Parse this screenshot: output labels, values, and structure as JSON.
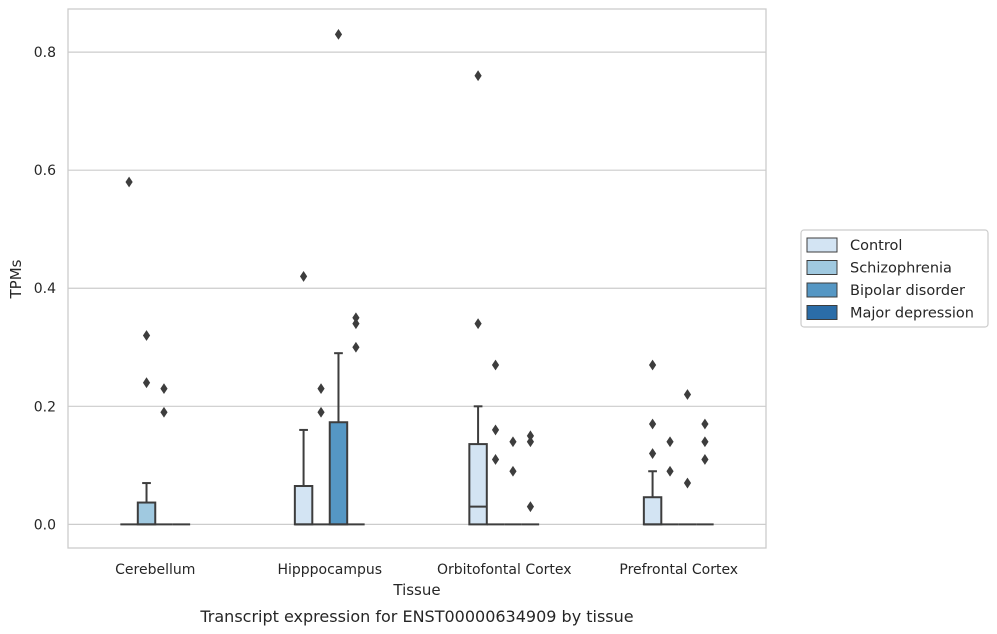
{
  "chart_data": {
    "type": "box",
    "title": "Transcript expression for ENST00000634909 by tissue",
    "xlabel": "Tissue",
    "ylabel": "TPMs",
    "ylim": [
      -0.04,
      0.873
    ],
    "yticks": [
      "0.0",
      "0.2",
      "0.4",
      "0.6",
      "0.8"
    ],
    "categories": [
      "Cerebellum",
      "Hipppocampus",
      "Orbitofontal Cortex",
      "Prefrontal Cortex"
    ],
    "grid": true,
    "legend_position": "right",
    "series": [
      {
        "name": "Control",
        "color": "#d3e4f3",
        "boxes": [
          {
            "q1": 0,
            "median": 0,
            "q3": 0,
            "whisker_low": 0,
            "whisker_high": 0,
            "outliers": [
              0.58
            ]
          },
          {
            "q1": 0,
            "median": 0,
            "q3": 0.065,
            "whisker_low": 0,
            "whisker_high": 0.16,
            "outliers": [
              0.42
            ]
          },
          {
            "q1": 0,
            "median": 0.03,
            "q3": 0.136,
            "whisker_low": 0,
            "whisker_high": 0.2,
            "outliers": [
              0.34,
              0.76
            ]
          },
          {
            "q1": 0,
            "median": 0,
            "q3": 0.046,
            "whisker_low": 0,
            "whisker_high": 0.09,
            "outliers": [
              0.12,
              0.17,
              0.27
            ]
          }
        ]
      },
      {
        "name": "Schizophrenia",
        "color": "#a0c9e0",
        "boxes": [
          {
            "q1": 0,
            "median": 0,
            "q3": 0.037,
            "whisker_low": 0,
            "whisker_high": 0.07,
            "outliers": [
              0.24,
              0.32
            ]
          },
          {
            "q1": 0,
            "median": 0,
            "q3": 0,
            "whisker_low": 0,
            "whisker_high": 0,
            "outliers": [
              0.19,
              0.23
            ]
          },
          {
            "q1": 0,
            "median": 0,
            "q3": 0,
            "whisker_low": 0,
            "whisker_high": 0,
            "outliers": [
              0.11,
              0.16,
              0.27
            ]
          },
          {
            "q1": 0,
            "median": 0,
            "q3": 0,
            "whisker_low": 0,
            "whisker_high": 0,
            "outliers": [
              0.09,
              0.14
            ]
          }
        ]
      },
      {
        "name": "Bipolar disorder",
        "color": "#5597c4",
        "boxes": [
          {
            "q1": 0,
            "median": 0,
            "q3": 0,
            "whisker_low": 0,
            "whisker_high": 0,
            "outliers": [
              0.19,
              0.23
            ]
          },
          {
            "q1": 0,
            "median": 0,
            "q3": 0.173,
            "whisker_low": 0,
            "whisker_high": 0.29,
            "outliers": [
              0.83
            ]
          },
          {
            "q1": 0,
            "median": 0,
            "q3": 0,
            "whisker_low": 0,
            "whisker_high": 0,
            "outliers": [
              0.09,
              0.14
            ]
          },
          {
            "q1": 0,
            "median": 0,
            "q3": 0,
            "whisker_low": 0,
            "whisker_high": 0,
            "outliers": [
              0.07,
              0.22
            ]
          }
        ]
      },
      {
        "name": "Major depression",
        "color": "#2b6da8",
        "boxes": [
          {
            "q1": 0,
            "median": 0,
            "q3": 0,
            "whisker_low": 0,
            "whisker_high": 0,
            "outliers": []
          },
          {
            "q1": 0,
            "median": 0,
            "q3": 0,
            "whisker_low": 0,
            "whisker_high": 0,
            "outliers": [
              0.3,
              0.34,
              0.35
            ]
          },
          {
            "q1": 0,
            "median": 0,
            "q3": 0,
            "whisker_low": 0,
            "whisker_high": 0,
            "outliers": [
              0.03,
              0.14,
              0.15
            ]
          },
          {
            "q1": 0,
            "median": 0,
            "q3": 0,
            "whisker_low": 0,
            "whisker_high": 0,
            "outliers": [
              0.11,
              0.14,
              0.17
            ]
          }
        ]
      }
    ]
  }
}
